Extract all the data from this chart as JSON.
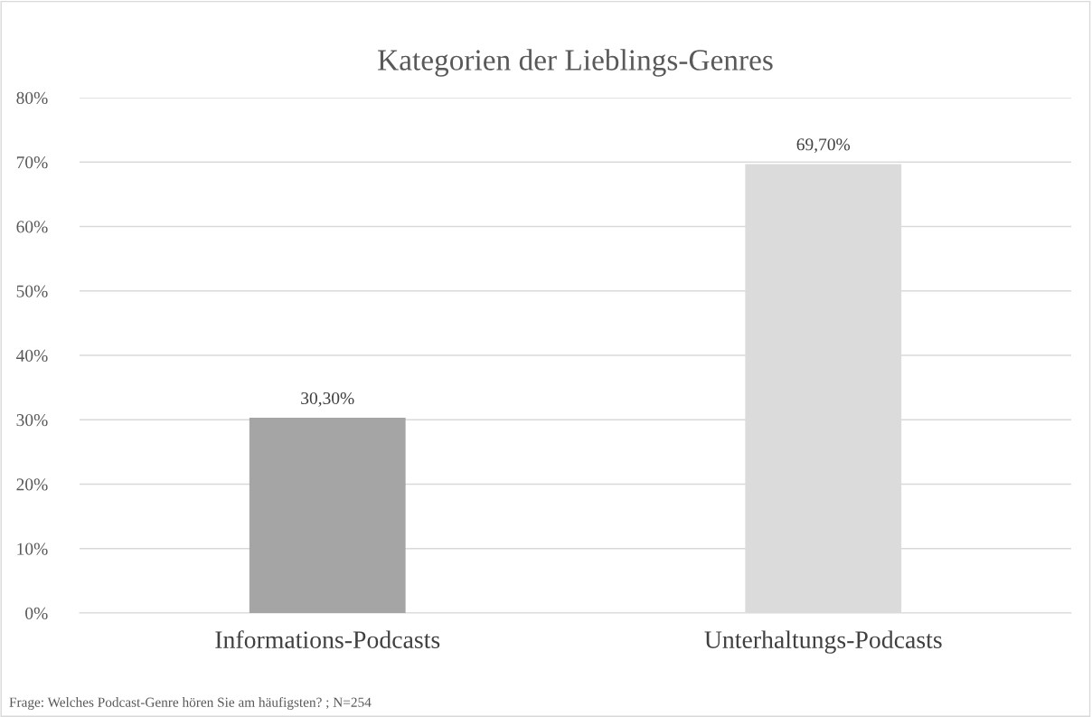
{
  "chart_data": {
    "type": "bar",
    "title": "Kategorien der Lieblings-Genres",
    "categories": [
      "Informations-Podcasts",
      "Unterhaltungs-Podcasts"
    ],
    "values": [
      30.3,
      69.7
    ],
    "colors": [
      "#a5a5a5",
      "#dbdbdb"
    ],
    "value_labels": [
      "30,30%",
      "69,70%"
    ],
    "ylim": [
      0,
      80
    ],
    "yticks": [
      {
        "value": 0,
        "label": "0%"
      },
      {
        "value": 10,
        "label": "10%"
      },
      {
        "value": 20,
        "label": "20%"
      },
      {
        "value": 30,
        "label": "30%"
      },
      {
        "value": 40,
        "label": "40%"
      },
      {
        "value": 50,
        "label": "50%"
      },
      {
        "value": 60,
        "label": "60%"
      },
      {
        "value": 70,
        "label": "70%"
      },
      {
        "value": 80,
        "label": "80%"
      }
    ],
    "grid": "y",
    "annotations": [
      "Frage: Welches Podcast-Genre hören Sie am häufigsten? ; N=254"
    ]
  }
}
